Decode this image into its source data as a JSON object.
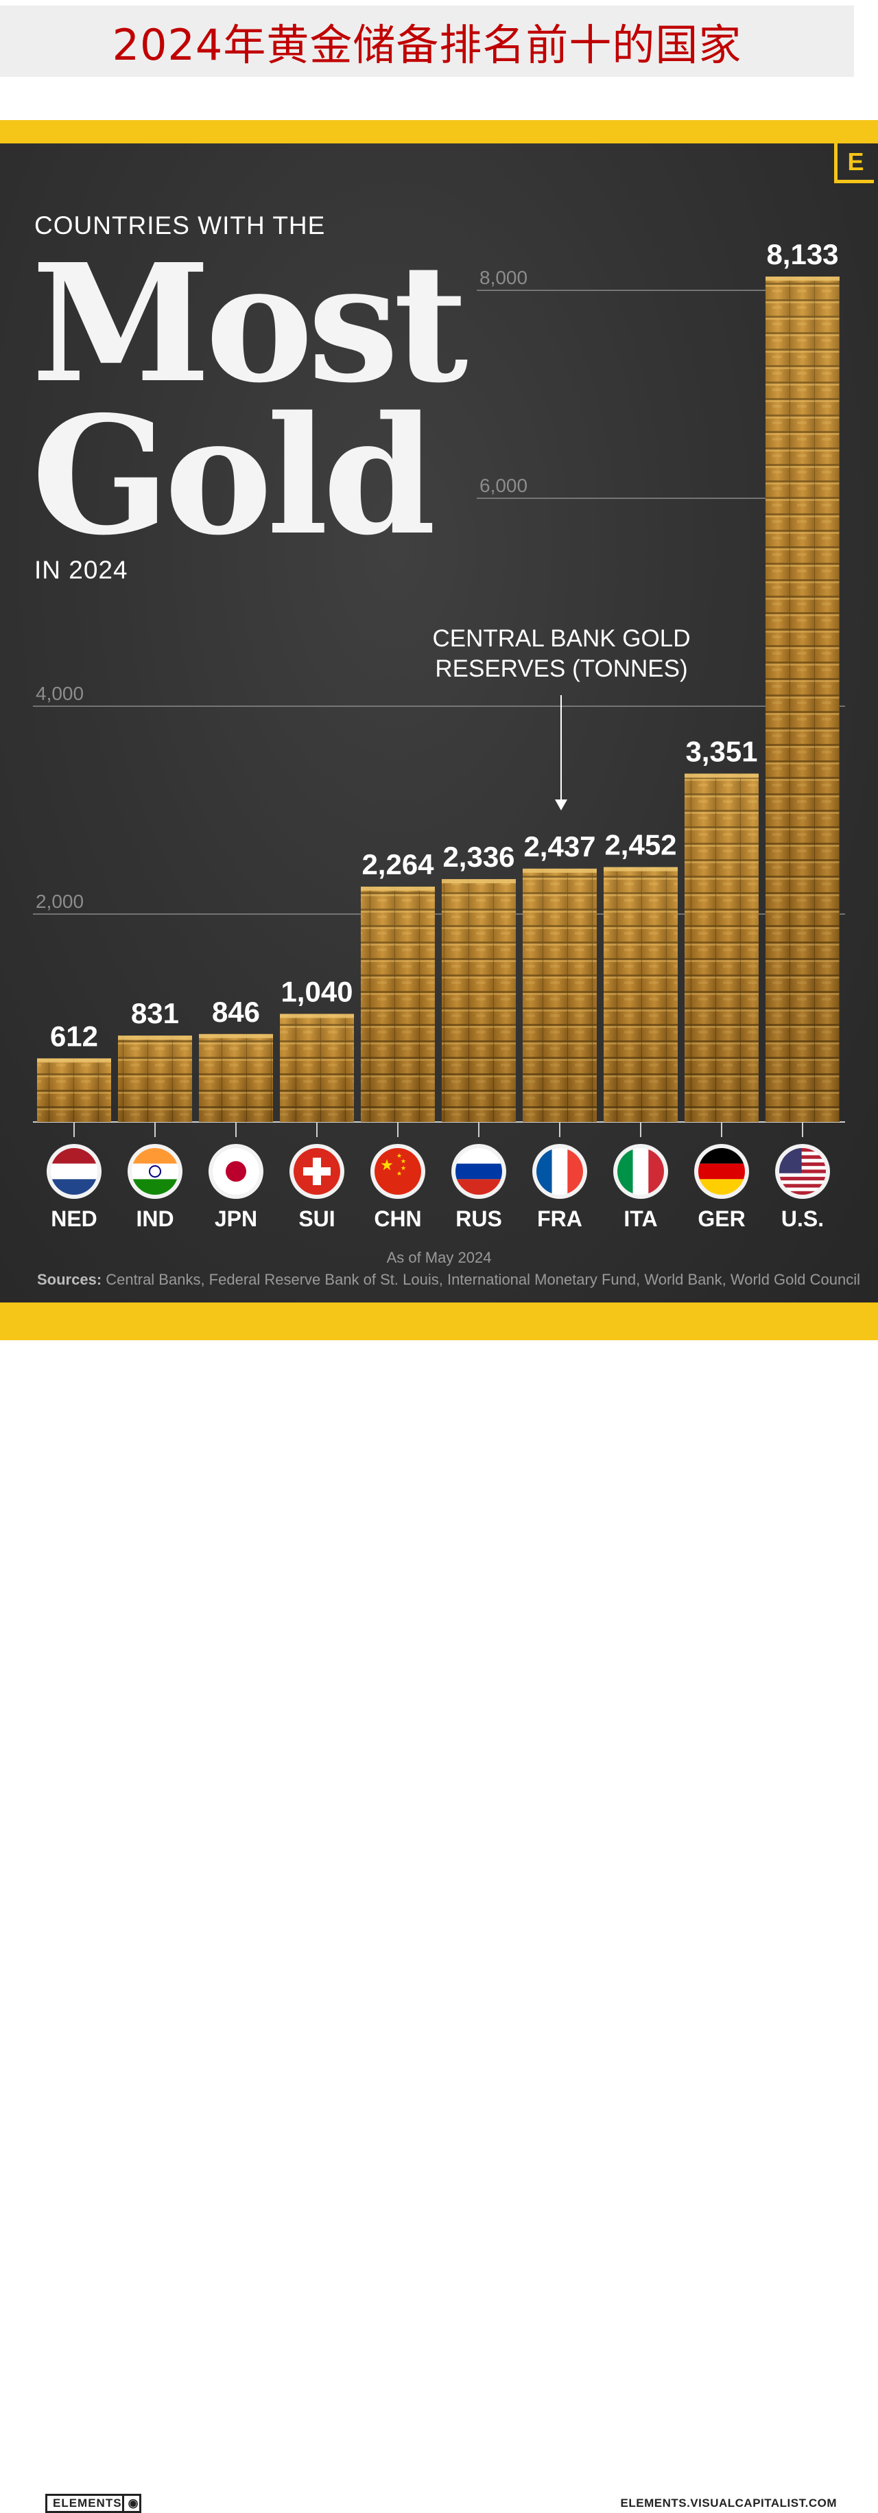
{
  "header": {
    "title": "2024年黄金储备排名前十的国家"
  },
  "poster": {
    "kicker": "COUNTRIES WITH THE",
    "title_line1": "Most",
    "title_line2": "Gold",
    "year_label": "IN 2024",
    "annotation_line1": "CENTRAL BANK GOLD",
    "annotation_line2": "RESERVES (TONNES)",
    "as_of": "As of May 2024",
    "sources_label": "Sources:",
    "sources_text": " Central Banks, Federal Reserve Bank of St. Louis, International Monetary Fund, World Bank, World Gold Council",
    "footer_brand": "ELEMENTS",
    "footer_url": "ELEMENTS.VISUALCAPITALIST.COM",
    "logo_letter": "E"
  },
  "colors": {
    "accent_yellow": "#f5c518",
    "gold_light": "#d9a441",
    "gold_dark": "#6e4a12",
    "gridline": "#8a8a8a"
  },
  "chart_data": {
    "type": "bar",
    "categories": [
      "NED",
      "IND",
      "JPN",
      "SUI",
      "CHN",
      "RUS",
      "FRA",
      "ITA",
      "GER",
      "U.S."
    ],
    "values": [
      612,
      831,
      846,
      1040,
      2264,
      2336,
      2437,
      2452,
      3351,
      8133
    ],
    "value_labels": [
      "612",
      "831",
      "846",
      "1,040",
      "2,264",
      "2,336",
      "2,437",
      "2,452",
      "3,351",
      "8,133"
    ],
    "yticks": [
      2000,
      4000,
      6000,
      8000
    ],
    "ytick_labels": [
      "2,000",
      "4,000",
      "6,000",
      "8,000"
    ],
    "ylim": [
      0,
      8133
    ],
    "title": "CENTRAL BANK GOLD RESERVES (TONNES)",
    "xlabel": "",
    "ylabel": "",
    "grid": true,
    "flags": [
      "netherlands-flag-icon",
      "india-flag-icon",
      "japan-flag-icon",
      "switzerland-flag-icon",
      "china-flag-icon",
      "russia-flag-icon",
      "france-flag-icon",
      "italy-flag-icon",
      "germany-flag-icon",
      "usa-flag-icon"
    ]
  }
}
